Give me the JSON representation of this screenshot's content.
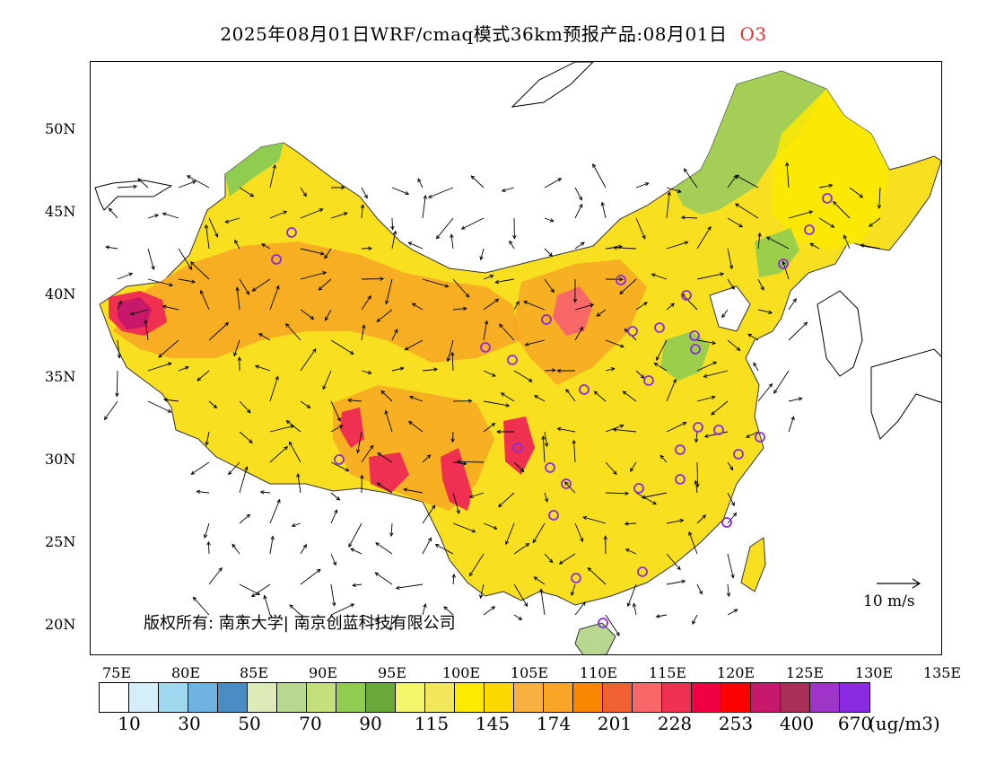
{
  "title": {
    "text": "2025年08月01日WRF/cmaq模式36km预报产品:08月01日",
    "species": "O3"
  },
  "axes": {
    "lat_labels": [
      "50N",
      "45N",
      "40N",
      "35N",
      "30N",
      "25N",
      "20N"
    ],
    "lon_labels": [
      "75E",
      "80E",
      "85E",
      "90E",
      "95E",
      "100E",
      "105E",
      "110E",
      "115E",
      "120E",
      "125E",
      "130E",
      "135E"
    ]
  },
  "copyright": "版权所有: 南京大学| 南京创蓝科技有限公司",
  "reference_vector": {
    "label": "10 m/s"
  },
  "colorbar": {
    "colors": [
      "#ffffff",
      "#d4eefa",
      "#a0d8f0",
      "#6eb3e0",
      "#4a8cc4",
      "#dcebb8",
      "#b8d890",
      "#c4e07c",
      "#90cc50",
      "#6aa83a",
      "#f4f56a",
      "#f2e65a",
      "#fcea00",
      "#fcd800",
      "#f8b040",
      "#f8a424",
      "#f88800",
      "#f06030",
      "#f86868",
      "#f03050",
      "#f00040",
      "#fc0000",
      "#c8186c",
      "#a83058",
      "#9e35c8",
      "#8a2be2"
    ],
    "labels": [
      "10",
      "30",
      "50",
      "70",
      "90",
      "115",
      "145",
      "174",
      "201",
      "228",
      "253",
      "400",
      "670"
    ],
    "units": "(ug/m3)"
  }
}
